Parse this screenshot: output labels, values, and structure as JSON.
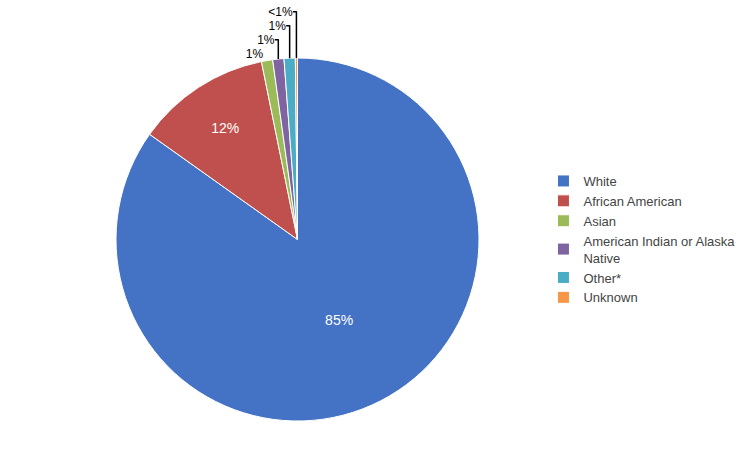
{
  "chart_data": {
    "type": "pie",
    "categories": [
      "White",
      "African American",
      "Asian",
      "American Indian or Alaska\nNative",
      "Other*",
      "Unknown"
    ],
    "values": [
      85,
      12,
      1,
      1,
      1,
      0.19
    ],
    "value_labels": [
      "85%",
      "12%",
      "1%",
      "1%",
      "1%",
      "<1%"
    ],
    "colors": [
      "#4472C4",
      "#C0504D",
      "#9BBB59",
      "#8064A2",
      "#4BACC6",
      "#F79646"
    ],
    "data_labels": true,
    "legend": "right"
  }
}
